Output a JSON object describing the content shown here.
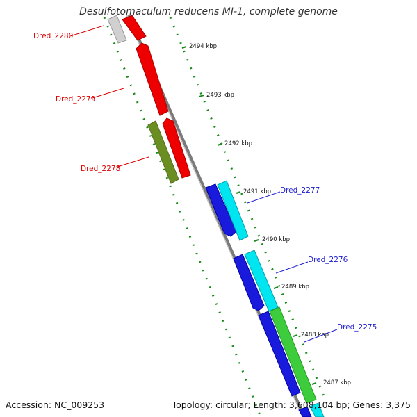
{
  "title": "Desulfotomaculum reducens MI-1, complete genome",
  "footer": {
    "accession": "Accession: NC_009253",
    "summary": "Topology: circular; Length: 3,608,104 bp; Genes: 3,375"
  },
  "colors": {
    "forward_strand": "#ee0000",
    "reverse_strand": "#1a1adc",
    "cyan_track": "#00e6f0",
    "green_track": "#3ccc3c",
    "olive_track": "#6b8e23",
    "backbone": "#888888",
    "tick": "#1a8a1a",
    "label_red": "#dd0000",
    "label_blue": "#1a1acc"
  },
  "kbp_ticks": [
    "2494 kbp",
    "2493 kbp",
    "2492 kbp",
    "2491 kbp",
    "2490 kbp",
    "2489 kbp",
    "2488 kbp",
    "2487 kbp"
  ],
  "gene_labels": [
    {
      "text": "Dred_2280",
      "strand": "forward"
    },
    {
      "text": "Dred_2279",
      "strand": "forward"
    },
    {
      "text": "Dred_2278",
      "strand": "forward"
    },
    {
      "text": "Dred_2277",
      "strand": "reverse"
    },
    {
      "text": "Dred_2276",
      "strand": "reverse"
    },
    {
      "text": "Dred_2275",
      "strand": "reverse"
    }
  ]
}
